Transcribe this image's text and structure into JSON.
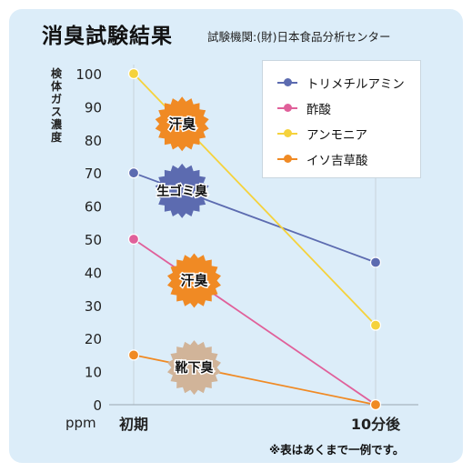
{
  "header": {
    "title": "消臭試験結果",
    "source": "試験機関:(財)日本食品分析センター"
  },
  "footnote": "※表はあくまで一例です。",
  "chart_data": {
    "type": "line",
    "ylabel": "検体ガス濃度",
    "yunit": "ppm",
    "ylim": [
      0,
      100
    ],
    "yticks": [
      "0",
      "10",
      "20",
      "30",
      "40",
      "50",
      "60",
      "70",
      "80",
      "90",
      "100"
    ],
    "categories": [
      "初期",
      "10分後"
    ],
    "grid": "vertical-only",
    "legend_position": "top-right",
    "series": [
      {
        "name": "トリメチルアミン",
        "values": [
          70,
          43
        ],
        "color": "#5c6bb0"
      },
      {
        "name": "酢酸",
        "values": [
          50,
          0
        ],
        "color": "#e0609a"
      },
      {
        "name": "アンモニア",
        "values": [
          100,
          24
        ],
        "color": "#f5d23c"
      },
      {
        "name": "イソ吉草酸",
        "values": [
          15,
          0
        ],
        "color": "#f08a24"
      }
    ],
    "annotations": [
      {
        "label": "汗臭",
        "series": "アンモニア",
        "color": "#f08a24"
      },
      {
        "label": "生ゴミ臭",
        "series": "トリメチルアミン",
        "color": "#5c6bb0"
      },
      {
        "label": "汗臭",
        "series": "酢酸",
        "color": "#f08a24"
      },
      {
        "label": "靴下臭",
        "series": "イソ吉草酸",
        "color": "#d1b499"
      }
    ]
  }
}
